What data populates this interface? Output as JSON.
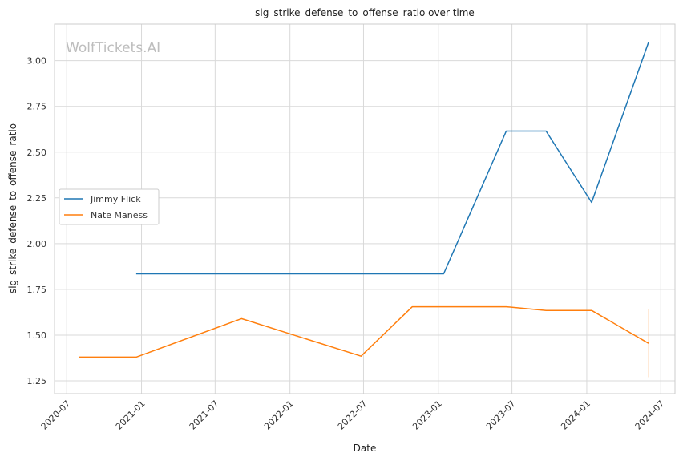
{
  "chart_data": {
    "type": "line",
    "title": "sig_strike_defense_to_offense_ratio over time",
    "xlabel": "Date",
    "ylabel": "sig_strike_defense_to_offense_ratio",
    "watermark": "WolfTickets.AI",
    "x_ticks": [
      "2020-07",
      "2021-01",
      "2021-07",
      "2022-01",
      "2022-07",
      "2023-01",
      "2023-07",
      "2024-01",
      "2024-07"
    ],
    "y_ticks": [
      "1.25",
      "1.50",
      "1.75",
      "2.00",
      "2.25",
      "2.50",
      "2.75",
      "3.00"
    ],
    "xlim": [
      "2020-06-01",
      "2024-08-05"
    ],
    "ylim": [
      1.18,
      3.2
    ],
    "grid": true,
    "legend_position": "center-left",
    "series": [
      {
        "name": "Jimmy Flick",
        "color": "#1f77b4",
        "x": [
          "2020-12-19",
          "2023-01-14",
          "2023-06-17",
          "2023-09-23",
          "2024-01-13",
          "2024-06-01"
        ],
        "y": [
          1.835,
          1.835,
          2.615,
          2.615,
          2.225,
          3.1
        ]
      },
      {
        "name": "Nate Maness",
        "color": "#ff7f0e",
        "x": [
          "2020-08-01",
          "2020-12-19",
          "2021-09-04",
          "2022-06-25",
          "2022-10-29",
          "2023-06-17",
          "2023-09-23",
          "2024-01-13",
          "2024-06-01"
        ],
        "y": [
          1.38,
          1.38,
          1.59,
          1.385,
          1.655,
          1.655,
          1.635,
          1.635,
          1.455
        ]
      }
    ],
    "annotations": [
      {
        "type": "vertical-range",
        "series": "Nate Maness",
        "x": "2024-06-01",
        "y_range": [
          1.27,
          1.64
        ],
        "color": "#ff7f0e"
      }
    ]
  }
}
